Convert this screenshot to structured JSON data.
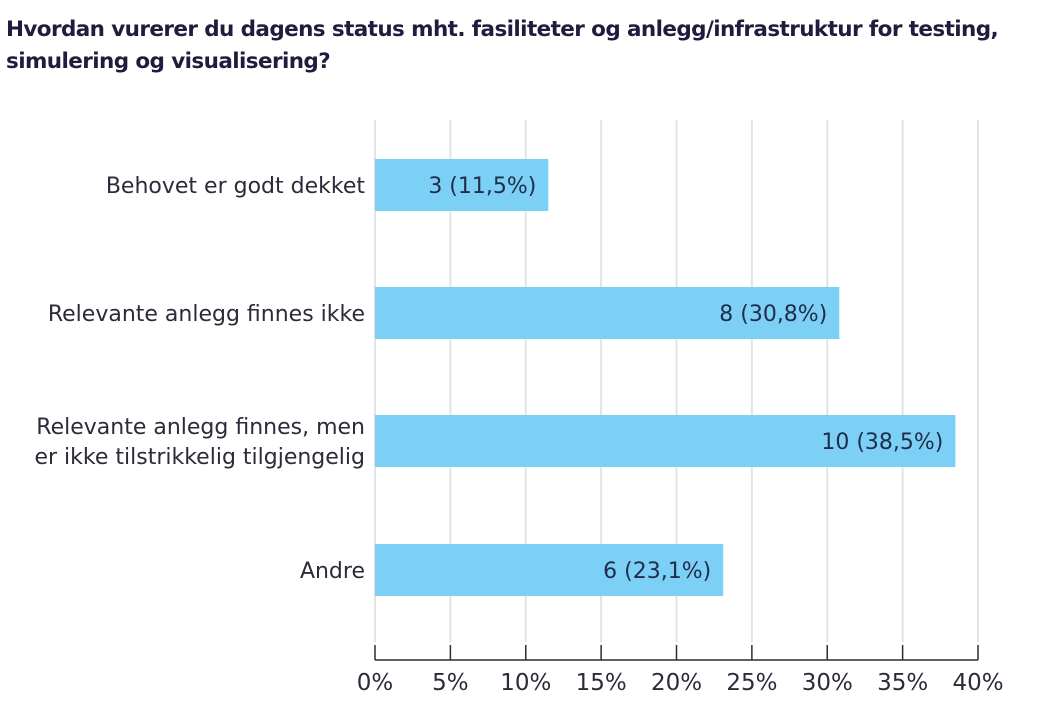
{
  "title": "Hvordan vurerer du dagens status mht. fasiliteter og anlegg/infrastruktur for testing, simulering og visualisering?",
  "chart_data": {
    "type": "bar",
    "orientation": "horizontal",
    "title": "Hvordan vurerer du dagens status mht. fasiliteter og anlegg/infrastruktur for testing, simulering og visualisering?",
    "xlabel": "",
    "ylabel": "",
    "categories": [
      [
        "Behovet er godt dekket"
      ],
      [
        "Relevante anlegg finnes ikke"
      ],
      [
        "Relevante anlegg finnes, men",
        "er ikke tilstrikkelig tilgjengelig"
      ],
      [
        "Andre"
      ]
    ],
    "counts": [
      3,
      8,
      10,
      6
    ],
    "values": [
      11.5,
      30.8,
      38.5,
      23.1
    ],
    "data_labels": [
      "3 (11,5%)",
      "8 (30,8%)",
      "10 (38,5%)",
      "6 (23,1%)"
    ],
    "xlim": [
      0,
      40
    ],
    "xticks": [
      0,
      5,
      10,
      15,
      20,
      25,
      30,
      35,
      40
    ],
    "xtick_labels": [
      "0%",
      "5%",
      "10%",
      "15%",
      "20%",
      "25%",
      "30%",
      "35%",
      "40%"
    ],
    "grid": true,
    "legend": "none",
    "colors": {
      "bar": "#7dd0f5",
      "grid": "#e3e3e3",
      "axis": "#2b2b3a",
      "title": "#1f1d3d"
    }
  }
}
